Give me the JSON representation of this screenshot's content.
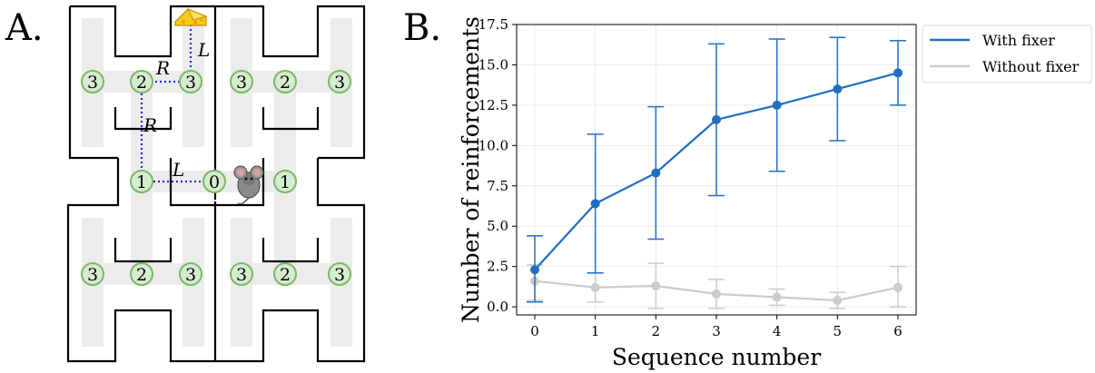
{
  "panels": {
    "a_label": "A.",
    "b_label": "B."
  },
  "maze": {
    "nodes_top_left": [
      "3",
      "2",
      "3"
    ],
    "nodes_top_right": [
      "3",
      "2",
      "3"
    ],
    "nodes_middle": [
      "1",
      "0",
      "1"
    ],
    "nodes_bottom_left": [
      "3",
      "2",
      "3"
    ],
    "nodes_bottom_right": [
      "3",
      "2",
      "3"
    ],
    "path_labels": {
      "top_r": "R",
      "top_l": "L",
      "mid_r": "R",
      "mid_l": "L"
    },
    "icons": [
      "cheese-icon",
      "mouse-icon"
    ],
    "colors": {
      "node_fill": "#d6ecd0",
      "node_stroke": "#7bb865",
      "corridor": "#ececec",
      "path": "#2a2ad4"
    }
  },
  "chart_data": {
    "type": "line",
    "xlabel": "Sequence number",
    "ylabel": "Number of reinforcements",
    "x": [
      0,
      1,
      2,
      3,
      4,
      5,
      6
    ],
    "xticks": [
      "0",
      "1",
      "2",
      "3",
      "4",
      "5",
      "6"
    ],
    "xlim": [
      -0.3,
      6.3
    ],
    "ylim": [
      -0.5,
      17.5
    ],
    "yticks": [
      "0.0",
      "2.5",
      "5.0",
      "7.5",
      "10.0",
      "12.5",
      "15.0",
      "17.5"
    ],
    "grid": true,
    "legend_position": "outside-top-right",
    "series": [
      {
        "name": "With fixer",
        "color": "#1f6fc4",
        "values": [
          2.3,
          6.4,
          8.3,
          11.6,
          12.5,
          13.5,
          14.5
        ],
        "err_low": [
          0.3,
          2.1,
          4.2,
          6.9,
          8.4,
          10.3,
          12.5
        ],
        "err_high": [
          4.4,
          10.7,
          12.4,
          16.3,
          16.6,
          16.7,
          16.5
        ]
      },
      {
        "name": "Without fixer",
        "color": "#cccccc",
        "values": [
          1.6,
          1.2,
          1.3,
          0.8,
          0.6,
          0.4,
          1.2
        ],
        "err_low": [
          0.4,
          0.3,
          -0.1,
          -0.1,
          0.1,
          -0.1,
          0.0
        ],
        "err_high": [
          2.6,
          2.1,
          2.7,
          1.7,
          1.1,
          0.9,
          2.5
        ]
      }
    ]
  }
}
